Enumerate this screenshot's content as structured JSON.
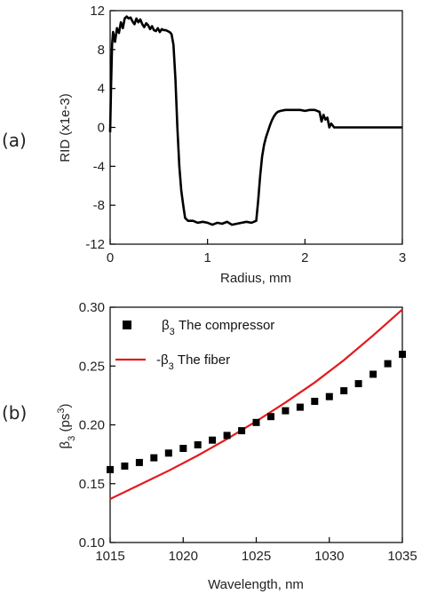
{
  "panels": {
    "a_label": "(a)",
    "b_label": "(b)"
  },
  "chart_data": [
    {
      "type": "line",
      "panel": "(a)",
      "xlabel": "Radius, mm",
      "ylabel": "RID (x1e-3)",
      "xlim": [
        0,
        3
      ],
      "ylim": [
        -12,
        12
      ],
      "xticks": [
        0,
        1,
        2,
        3
      ],
      "yticks": [
        -12,
        -8,
        -4,
        0,
        4,
        8,
        12
      ],
      "xtick_labels": [
        "0",
        "1",
        "2",
        "3"
      ],
      "ytick_labels": [
        "-12",
        "-8",
        "-4",
        "0",
        "4",
        "8",
        "12"
      ],
      "grid": false,
      "color": "#000000",
      "series": [
        {
          "x": [
            0.0,
            0.01,
            0.02,
            0.03,
            0.05,
            0.07,
            0.09,
            0.11,
            0.13,
            0.15,
            0.17,
            0.19,
            0.21,
            0.23,
            0.25,
            0.27,
            0.29,
            0.31,
            0.33,
            0.35,
            0.37,
            0.39,
            0.41,
            0.43,
            0.45,
            0.47,
            0.49,
            0.51,
            0.53,
            0.55,
            0.57,
            0.59,
            0.61,
            0.63,
            0.65,
            0.67,
            0.69,
            0.71,
            0.73,
            0.75,
            0.77,
            0.8,
            0.85,
            0.9,
            0.95,
            1.0,
            1.05,
            1.1,
            1.15,
            1.2,
            1.25,
            1.3,
            1.35,
            1.4,
            1.45,
            1.5,
            1.52,
            1.54,
            1.56,
            1.58,
            1.6,
            1.62,
            1.64,
            1.66,
            1.68,
            1.7,
            1.72,
            1.75,
            1.8,
            1.85,
            1.9,
            1.95,
            2.0,
            2.05,
            2.1,
            2.15,
            2.17,
            2.19,
            2.21,
            2.23,
            2.25,
            2.27,
            2.3,
            2.4,
            2.6,
            2.8,
            3.0
          ],
          "y": [
            -0.5,
            4.5,
            8.5,
            9.8,
            8.8,
            10.2,
            9.7,
            10.8,
            10.2,
            11.2,
            11.4,
            11.2,
            11.3,
            10.9,
            10.6,
            11.2,
            10.8,
            11.1,
            10.6,
            10.3,
            10.7,
            10.5,
            10.1,
            10.4,
            10.0,
            9.9,
            10.2,
            9.8,
            10.1,
            10.0,
            10.0,
            9.9,
            9.8,
            9.6,
            8.5,
            5.0,
            0.0,
            -4.0,
            -6.5,
            -8.0,
            -9.3,
            -9.6,
            -9.6,
            -9.8,
            -9.7,
            -9.8,
            -10.0,
            -9.8,
            -9.9,
            -9.7,
            -10.0,
            -9.9,
            -9.8,
            -9.7,
            -9.8,
            -9.6,
            -7.5,
            -5.0,
            -3.0,
            -1.8,
            -1.0,
            -0.4,
            0.2,
            0.7,
            1.1,
            1.4,
            1.6,
            1.7,
            1.8,
            1.8,
            1.8,
            1.8,
            1.7,
            1.8,
            1.8,
            1.6,
            0.6,
            1.3,
            0.8,
            1.0,
            0.0,
            0.4,
            0.0,
            0.0,
            0.0,
            0.0,
            0.0
          ]
        }
      ]
    },
    {
      "type": "scatter",
      "panel": "(b)",
      "xlabel": "Wavelength, nm",
      "ylabel": "β3 (ps3)",
      "xlim": [
        1015,
        1035
      ],
      "ylim": [
        0.1,
        0.3
      ],
      "xticks": [
        1015,
        1020,
        1025,
        1030,
        1035
      ],
      "yticks": [
        0.1,
        0.15,
        0.2,
        0.25,
        0.3
      ],
      "xtick_labels": [
        "1015",
        "1020",
        "1025",
        "1030",
        "1035"
      ],
      "ytick_labels": [
        "0.10",
        "0.15",
        "0.20",
        "0.25",
        "0.30"
      ],
      "grid": false,
      "legend_position": "top-left",
      "series": [
        {
          "name": "β3 The compressor",
          "legend_text": "The compressor",
          "style": "square-markers",
          "color": "#000000",
          "x": [
            1015,
            1016,
            1017,
            1018,
            1019,
            1020,
            1021,
            1022,
            1023,
            1024,
            1025,
            1026,
            1027,
            1028,
            1029,
            1030,
            1031,
            1032,
            1033,
            1034,
            1035
          ],
          "y": [
            0.162,
            0.165,
            0.168,
            0.172,
            0.176,
            0.18,
            0.183,
            0.187,
            0.191,
            0.195,
            0.202,
            0.207,
            0.212,
            0.215,
            0.22,
            0.224,
            0.229,
            0.235,
            0.243,
            0.252,
            0.26
          ]
        },
        {
          "name": "-β3 The fiber",
          "legend_text": "The fiber",
          "style": "line",
          "color": "#e31a1c",
          "x": [
            1015,
            1017,
            1019,
            1021,
            1023,
            1025,
            1027,
            1029,
            1031,
            1033,
            1035
          ],
          "y": [
            0.137,
            0.149,
            0.161,
            0.174,
            0.188,
            0.203,
            0.219,
            0.236,
            0.255,
            0.276,
            0.298
          ]
        }
      ]
    }
  ]
}
